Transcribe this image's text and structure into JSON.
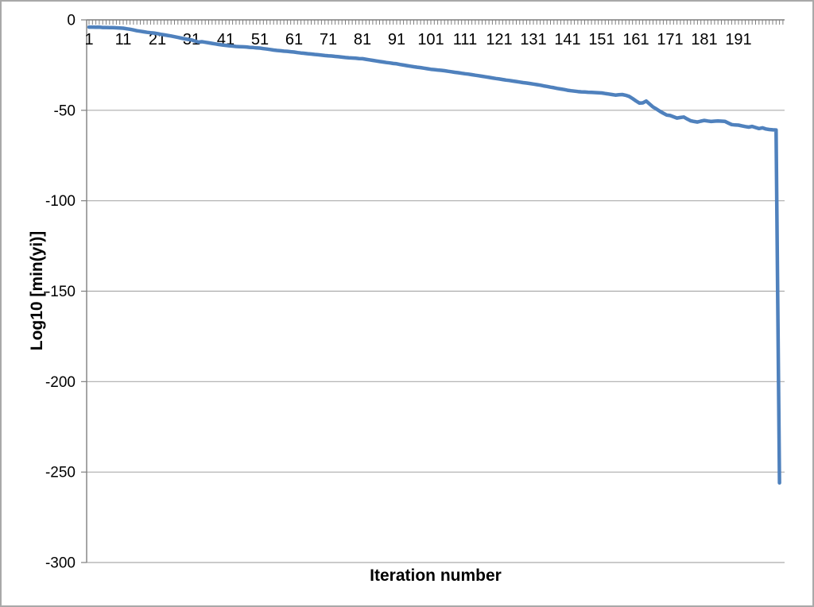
{
  "frame": {
    "background_color": "#ffffff",
    "border_color": "#a9a9a9"
  },
  "chart_data": {
    "type": "line",
    "title": "",
    "xlabel": "Iteration number",
    "ylabel": "Log10 [min(yi)]",
    "legend": "none",
    "grid": "horizontal",
    "ylim": [
      -300,
      0
    ],
    "y_ticks": [
      0,
      -50,
      -100,
      -150,
      -200,
      -250,
      -300
    ],
    "x_tick_labels": [
      "1",
      "11",
      "21",
      "31",
      "41",
      "51",
      "61",
      "71",
      "81",
      "91",
      "101",
      "111",
      "121",
      "131",
      "141",
      "151",
      "161",
      "171",
      "181",
      "191"
    ],
    "x_tick_step": 10,
    "colors": {
      "line": "#4f81bd",
      "axis": "#7f7f7f",
      "gridline": "#ababab",
      "text": "#000000"
    },
    "series": [
      {
        "name": "Log10 of min(yi)",
        "x_start": 1,
        "x_step": 1,
        "values": [
          -4.0,
          -4.0,
          -4.1,
          -4.0,
          -4.2,
          -4.2,
          -4.3,
          -4.3,
          -4.4,
          -4.5,
          -4.6,
          -4.9,
          -5.2,
          -5.6,
          -6.0,
          -6.3,
          -6.6,
          -6.9,
          -7.1,
          -7.3,
          -7.6,
          -8.0,
          -8.3,
          -8.6,
          -8.9,
          -9.3,
          -9.7,
          -10.1,
          -10.5,
          -10.8,
          -11.1,
          -11.7,
          -12.3,
          -12.1,
          -12.4,
          -12.7,
          -13.0,
          -13.3,
          -13.6,
          -13.9,
          -14.1,
          -14.3,
          -14.5,
          -14.7,
          -14.8,
          -14.9,
          -15.0,
          -15.2,
          -15.3,
          -15.5,
          -15.6,
          -15.9,
          -16.1,
          -16.4,
          -16.7,
          -16.9,
          -17.1,
          -17.3,
          -17.4,
          -17.6,
          -17.8,
          -18.1,
          -18.3,
          -18.5,
          -18.7,
          -18.9,
          -19.1,
          -19.3,
          -19.5,
          -19.7,
          -19.9,
          -20.0,
          -20.2,
          -20.4,
          -20.6,
          -20.8,
          -21.0,
          -21.1,
          -21.2,
          -21.4,
          -21.5,
          -21.8,
          -22.1,
          -22.4,
          -22.7,
          -23.0,
          -23.3,
          -23.6,
          -23.8,
          -24.1,
          -24.3,
          -24.7,
          -25.0,
          -25.3,
          -25.6,
          -25.9,
          -26.2,
          -26.4,
          -26.7,
          -27.0,
          -27.3,
          -27.5,
          -27.7,
          -27.9,
          -28.1,
          -28.4,
          -28.7,
          -29.0,
          -29.2,
          -29.5,
          -29.8,
          -30.0,
          -30.3,
          -30.6,
          -30.9,
          -31.2,
          -31.5,
          -31.8,
          -32.1,
          -32.4,
          -32.7,
          -33.0,
          -33.3,
          -33.5,
          -33.8,
          -34.1,
          -34.4,
          -34.7,
          -34.9,
          -35.2,
          -35.5,
          -35.8,
          -36.1,
          -36.5,
          -36.8,
          -37.2,
          -37.5,
          -37.9,
          -38.2,
          -38.5,
          -38.9,
          -39.2,
          -39.4,
          -39.6,
          -39.8,
          -39.9,
          -40.0,
          -40.1,
          -40.2,
          -40.3,
          -40.4,
          -40.7,
          -41.0,
          -41.3,
          -41.6,
          -41.4,
          -41.3,
          -41.7,
          -42.3,
          -43.5,
          -44.8,
          -46.0,
          -45.9,
          -44.9,
          -46.5,
          -48.2,
          -49.3,
          -50.5,
          -51.6,
          -52.6,
          -52.9,
          -53.6,
          -54.3,
          -54.0,
          -53.7,
          -54.8,
          -55.8,
          -56.2,
          -56.5,
          -56.0,
          -55.6,
          -55.9,
          -56.2,
          -56.0,
          -55.9,
          -56.0,
          -56.1,
          -57.0,
          -57.9,
          -58.1,
          -58.2,
          -58.6,
          -59.0,
          -59.3,
          -58.9,
          -59.5,
          -60.1,
          -59.7,
          -60.3,
          -60.6,
          -60.8,
          -60.9,
          -256.0
        ]
      }
    ]
  }
}
